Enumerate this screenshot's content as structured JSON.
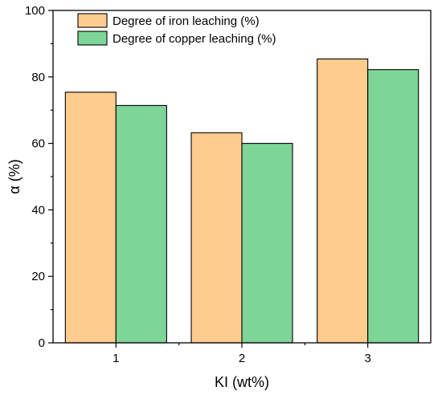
{
  "chart_data": {
    "type": "bar",
    "categories": [
      "1",
      "2",
      "3"
    ],
    "series": [
      {
        "name": "Degree of iron leaching (%)",
        "values": [
          75.4,
          63.2,
          85.4
        ],
        "color": "#FECC8E"
      },
      {
        "name": "Degree of copper leaching (%)",
        "values": [
          71.4,
          60.0,
          82.2
        ],
        "color": "#7DD697"
      }
    ],
    "xlabel": "KI (wt%)",
    "ylabel": "α (%)",
    "ylim": [
      0,
      100
    ],
    "yticks": [
      0,
      20,
      40,
      60,
      80,
      100
    ],
    "legend_position": "top-left",
    "grid": false
  }
}
